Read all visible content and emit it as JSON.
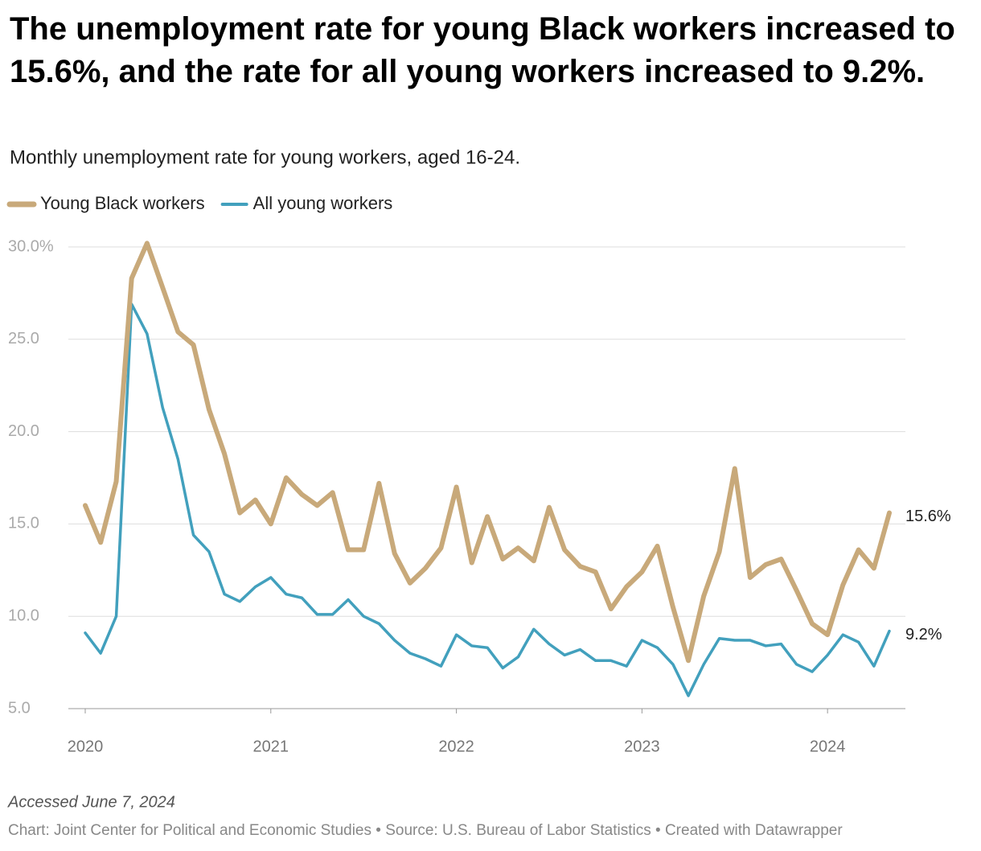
{
  "chart_data": {
    "type": "line",
    "title": "The unemployment rate for young Black workers increased to 15.6%, and the rate for all young workers increased to 9.2%.",
    "subtitle": "Monthly unemployment rate for young workers, aged 16-24.",
    "note": "Accessed June 7, 2024",
    "credit": "Chart: Joint Center for Political and Economic Studies • Source: U.S. Bureau of Labor Statistics • Created with Datawrapper",
    "x": [
      2020,
      2020.083,
      2020.167,
      2020.25,
      2020.333,
      2020.417,
      2020.5,
      2020.583,
      2020.667,
      2020.75,
      2020.833,
      2020.917,
      2021,
      2021.083,
      2021.167,
      2021.25,
      2021.333,
      2021.417,
      2021.5,
      2021.583,
      2021.667,
      2021.75,
      2021.833,
      2021.917,
      2022,
      2022.083,
      2022.167,
      2022.25,
      2022.333,
      2022.417,
      2022.5,
      2022.583,
      2022.667,
      2022.75,
      2022.833,
      2022.917,
      2023,
      2023.083,
      2023.167,
      2023.25,
      2023.333,
      2023.417,
      2023.5,
      2023.583,
      2023.667,
      2023.75,
      2023.833,
      2023.917,
      2024,
      2024.083,
      2024.167,
      2024.25,
      2024.333
    ],
    "series": [
      {
        "name": "Young Black workers",
        "color": "#c8a97a",
        "end_label": "15.6%",
        "values": [
          16.0,
          14.0,
          17.3,
          28.3,
          30.2,
          27.8,
          25.4,
          24.7,
          21.2,
          18.8,
          15.6,
          16.3,
          15.0,
          17.5,
          16.6,
          16.0,
          16.7,
          13.6,
          13.6,
          17.2,
          13.4,
          11.8,
          12.6,
          13.7,
          17.0,
          12.9,
          15.4,
          13.1,
          13.7,
          13.0,
          15.9,
          13.6,
          12.7,
          12.4,
          10.4,
          11.6,
          12.4,
          13.8,
          10.5,
          7.6,
          11.1,
          13.5,
          18.0,
          12.1,
          12.8,
          13.1,
          11.4,
          9.6,
          9.0,
          11.7,
          13.6,
          12.6,
          15.6
        ]
      },
      {
        "name": "All young workers",
        "color": "#42a0bd",
        "end_label": "9.2%",
        "values": [
          9.1,
          8.0,
          10.0,
          26.9,
          25.3,
          21.3,
          18.5,
          14.4,
          13.5,
          11.2,
          10.8,
          11.6,
          12.1,
          11.2,
          11.0,
          10.1,
          10.1,
          10.9,
          10.0,
          9.6,
          8.7,
          8.0,
          7.7,
          7.3,
          9.0,
          8.4,
          8.3,
          7.2,
          7.8,
          9.3,
          8.5,
          7.9,
          8.2,
          7.6,
          7.6,
          7.3,
          8.7,
          8.3,
          7.4,
          5.7,
          7.4,
          8.8,
          8.7,
          8.7,
          8.4,
          8.5,
          7.4,
          7.0,
          7.9,
          9.0,
          8.6,
          7.3,
          9.2
        ]
      }
    ],
    "xlim": [
      2020,
      2024.333
    ],
    "xticks": [
      2020,
      2021,
      2022,
      2023,
      2024
    ],
    "ylim": [
      5,
      30
    ],
    "yticks": [
      {
        "value": 5,
        "label": "5.0"
      },
      {
        "value": 10,
        "label": "10.0"
      },
      {
        "value": 15,
        "label": "15.0"
      },
      {
        "value": 20,
        "label": "20.0"
      },
      {
        "value": 25,
        "label": "25.0"
      },
      {
        "value": 30,
        "label": "30.0%"
      }
    ],
    "grid": true,
    "legend": "top-left"
  }
}
